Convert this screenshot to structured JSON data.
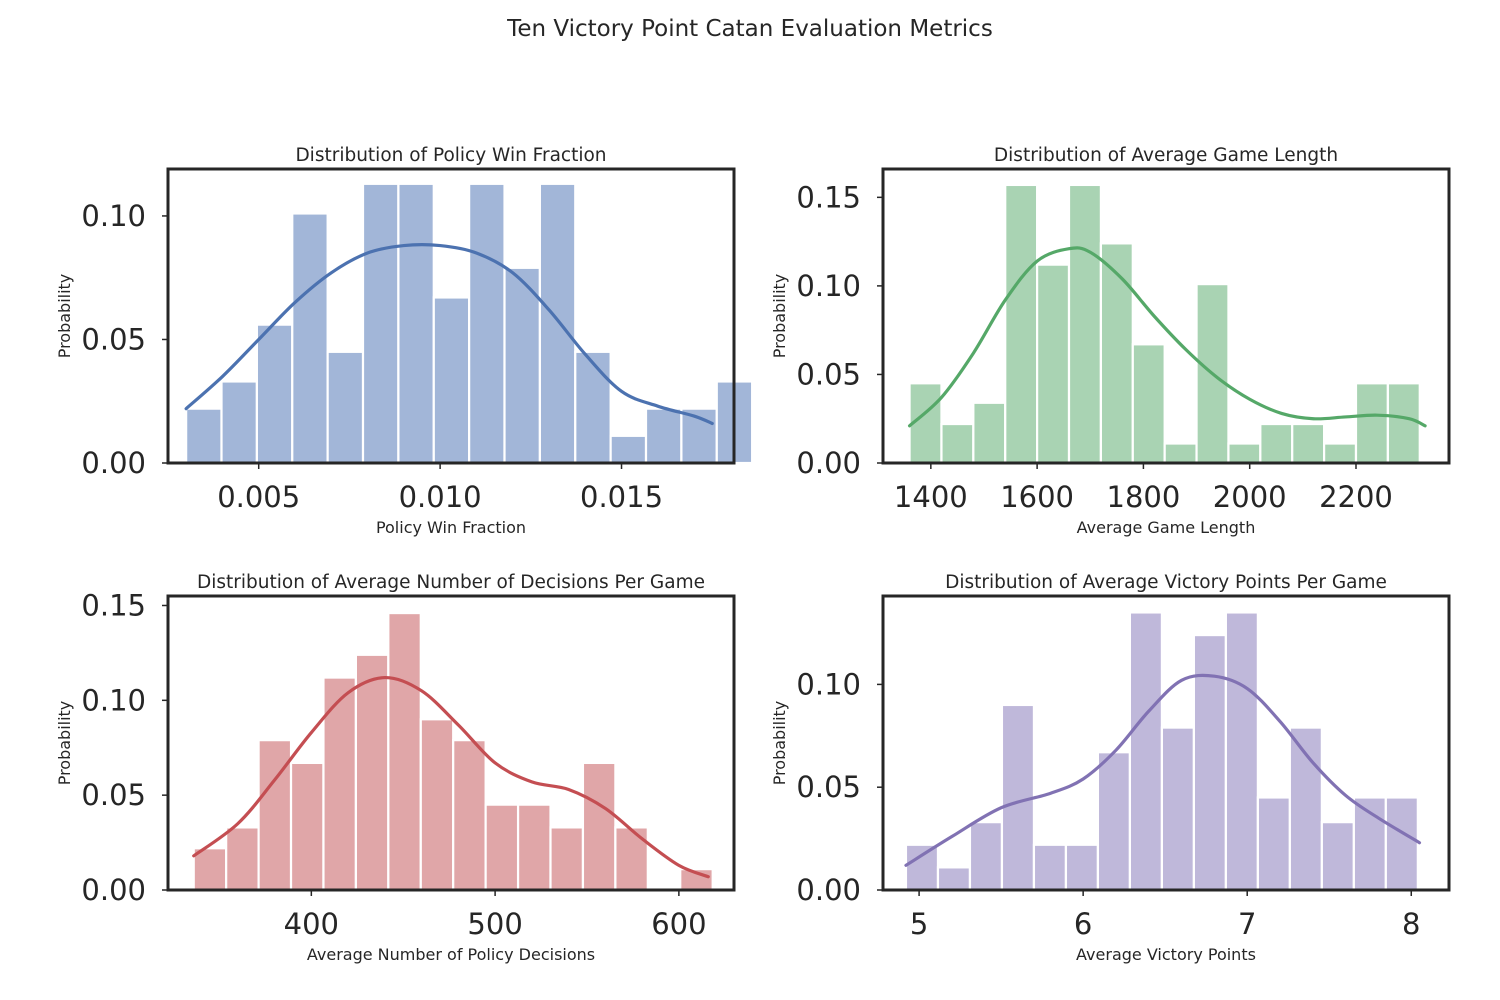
{
  "figure": {
    "title": "Ten Victory Point Catan Evaluation Metrics"
  },
  "chart_data": [
    {
      "type": "bar",
      "title": "Distribution of Policy Win Fraction",
      "xlabel": "Policy Win Fraction",
      "ylabel": "Probability",
      "xlim": [
        0.0025,
        0.0181
      ],
      "ylim": [
        0,
        0.119
      ],
      "xticks": [
        0.005,
        0.01,
        0.015
      ],
      "xtick_labels": [
        "0.005",
        "0.010",
        "0.015"
      ],
      "yticks": [
        0.0,
        0.05,
        0.1
      ],
      "ytick_labels": [
        "0.00",
        "0.05",
        "0.10"
      ],
      "bin_start": 0.003,
      "bin_width": 0.000975,
      "values": [
        0.022,
        0.033,
        0.056,
        0.101,
        0.045,
        0.113,
        0.113,
        0.067,
        0.113,
        0.079,
        0.113,
        0.045,
        0.011,
        0.022,
        0.022,
        0.033
      ],
      "kde": {
        "x": [
          0.003,
          0.004,
          0.005,
          0.006,
          0.007,
          0.008,
          0.009,
          0.01,
          0.011,
          0.012,
          0.013,
          0.014,
          0.015,
          0.016,
          0.017,
          0.0175
        ],
        "y": [
          0.022,
          0.035,
          0.05,
          0.065,
          0.077,
          0.085,
          0.088,
          0.088,
          0.085,
          0.077,
          0.062,
          0.044,
          0.029,
          0.023,
          0.019,
          0.016
        ]
      },
      "color": "#4c72b0",
      "bar_color": "#a2b6d8"
    },
    {
      "type": "bar",
      "title": "Distribution of Average Game Length",
      "xlabel": "Average Game Length",
      "ylabel": "Probability",
      "xlim": [
        1310,
        2375
      ],
      "ylim": [
        0,
        0.166
      ],
      "xticks": [
        1400,
        1600,
        1800,
        2000,
        2200
      ],
      "xtick_labels": [
        "1400",
        "1600",
        "1800",
        "2000",
        "2200"
      ],
      "yticks": [
        0.0,
        0.05,
        0.1,
        0.15
      ],
      "ytick_labels": [
        "0.00",
        "0.05",
        "0.10",
        "0.15"
      ],
      "bin_start": 1360,
      "bin_width": 60,
      "values": [
        0.045,
        0.022,
        0.034,
        0.157,
        0.112,
        0.157,
        0.124,
        0.067,
        0.011,
        0.101,
        0.011,
        0.022,
        0.022,
        0.011,
        0.045,
        0.045
      ],
      "kde": {
        "x": [
          1360,
          1420,
          1480,
          1540,
          1600,
          1660,
          1700,
          1760,
          1820,
          1880,
          1940,
          2000,
          2060,
          2120,
          2180,
          2240,
          2300,
          2330
        ],
        "y": [
          0.021,
          0.037,
          0.062,
          0.092,
          0.114,
          0.121,
          0.119,
          0.104,
          0.083,
          0.064,
          0.048,
          0.036,
          0.028,
          0.025,
          0.026,
          0.027,
          0.025,
          0.021
        ]
      },
      "color": "#55a868",
      "bar_color": "#a9d3b3"
    },
    {
      "type": "bar",
      "title": "Distribution of Average Number of Decisions Per Game",
      "xlabel": "Average Number of Policy Decisions",
      "ylabel": "Probability",
      "xlim": [
        322,
        630
      ],
      "ylim": [
        0,
        0.155
      ],
      "xticks": [
        400,
        500,
        600
      ],
      "xtick_labels": [
        "400",
        "500",
        "600"
      ],
      "yticks": [
        0.0,
        0.05,
        0.1,
        0.15
      ],
      "ytick_labels": [
        "0.00",
        "0.05",
        "0.10",
        "0.15"
      ],
      "bin_start": 336,
      "bin_width": 17.65,
      "values": [
        0.022,
        0.033,
        0.079,
        0.067,
        0.112,
        0.124,
        0.146,
        0.09,
        0.079,
        0.045,
        0.045,
        0.033,
        0.067,
        0.033,
        0.0,
        0.011
      ],
      "kde": {
        "x": [
          336,
          360,
          380,
          400,
          420,
          440,
          460,
          480,
          500,
          520,
          540,
          560,
          580,
          600,
          616
        ],
        "y": [
          0.018,
          0.035,
          0.058,
          0.083,
          0.104,
          0.112,
          0.105,
          0.087,
          0.067,
          0.057,
          0.053,
          0.043,
          0.027,
          0.013,
          0.007
        ]
      },
      "color": "#c44e52",
      "bar_color": "#e0a6a8"
    },
    {
      "type": "bar",
      "title": "Distribution of Average Victory Points Per Game",
      "xlabel": "Average Victory Points",
      "ylabel": "Probability",
      "xlim": [
        4.78,
        8.23
      ],
      "ylim": [
        0,
        0.143
      ],
      "xticks": [
        5,
        6,
        7,
        8
      ],
      "xtick_labels": [
        "5",
        "6",
        "7",
        "8"
      ],
      "yticks": [
        0.0,
        0.05,
        0.1
      ],
      "ytick_labels": [
        "0.00",
        "0.05",
        "0.10"
      ],
      "bin_start": 4.92,
      "bin_width": 0.195,
      "values": [
        0.022,
        0.011,
        0.033,
        0.09,
        0.022,
        0.022,
        0.067,
        0.135,
        0.079,
        0.124,
        0.135,
        0.045,
        0.079,
        0.033,
        0.045,
        0.045
      ],
      "kde": {
        "x": [
          4.92,
          5.2,
          5.5,
          5.8,
          6.0,
          6.2,
          6.4,
          6.6,
          6.8,
          7.0,
          7.2,
          7.4,
          7.6,
          7.8,
          8.05
        ],
        "y": [
          0.012,
          0.026,
          0.04,
          0.047,
          0.054,
          0.068,
          0.087,
          0.102,
          0.104,
          0.098,
          0.082,
          0.062,
          0.046,
          0.035,
          0.023
        ]
      },
      "color": "#8172b3",
      "bar_color": "#bfb8da"
    }
  ]
}
